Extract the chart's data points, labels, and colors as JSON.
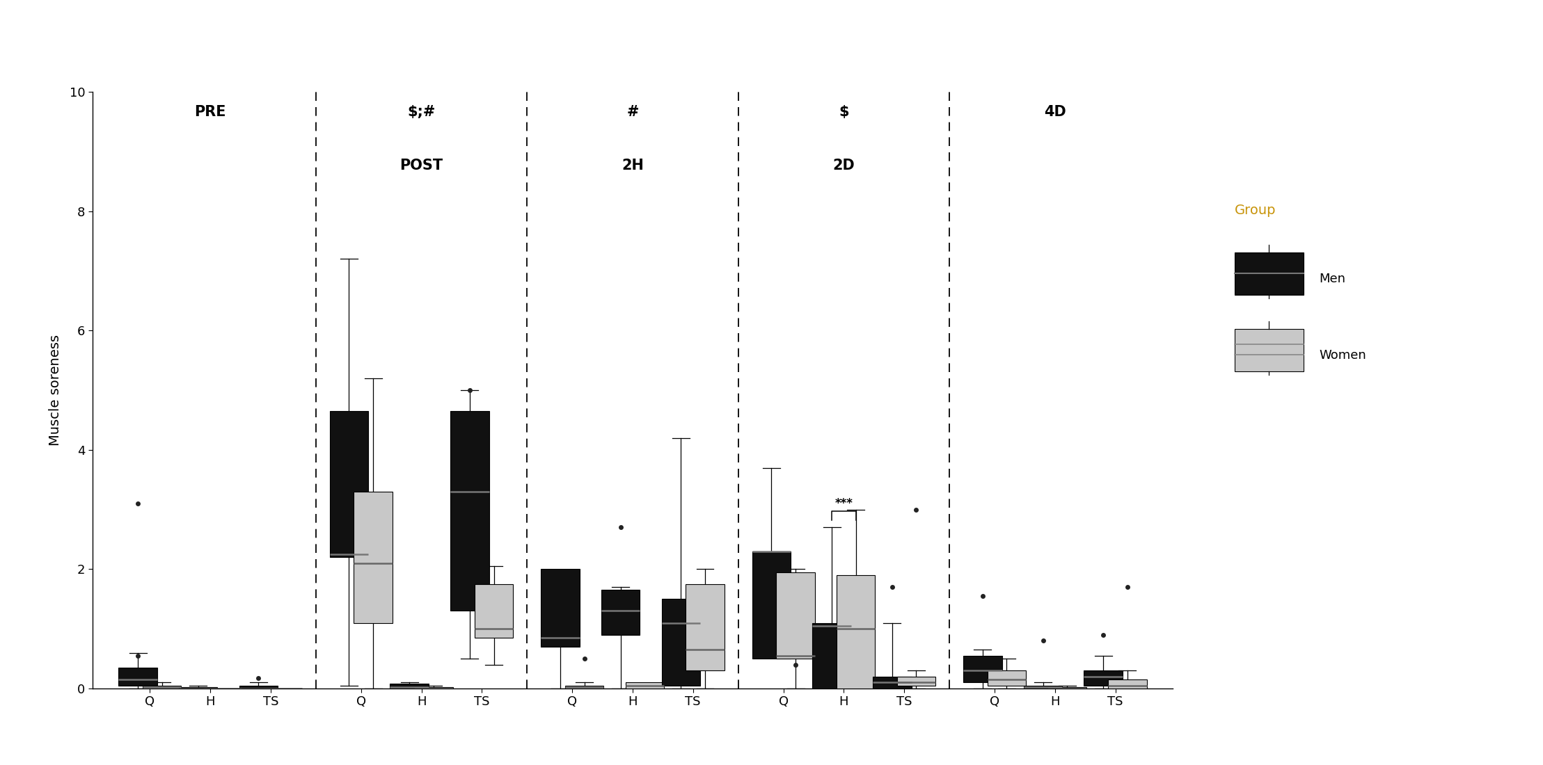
{
  "timepoints": [
    "PRE",
    "POST",
    "2H",
    "2D",
    "4D"
  ],
  "muscles": [
    "Q",
    "H",
    "TS"
  ],
  "section_label_lines1": [
    "PRE",
    "$;#",
    "#",
    "$",
    "4D"
  ],
  "section_label_lines2": [
    "",
    "POST",
    "2H",
    "2D",
    ""
  ],
  "ylabel": "Muscle soreness",
  "ylim": [
    0,
    10
  ],
  "yticks": [
    0,
    2,
    4,
    6,
    8,
    10
  ],
  "men_color": "#111111",
  "women_color": "#c8c8c8",
  "legend_title": "Group",
  "legend_title_color": "#d4a017",
  "boxes": {
    "PRE_Q_men": {
      "q1": 0.05,
      "median": 0.15,
      "q3": 0.35,
      "whislo": 0.0,
      "whishi": 0.6,
      "fliers": [
        0.55,
        3.1
      ]
    },
    "PRE_Q_women": {
      "q1": 0.0,
      "median": 0.02,
      "q3": 0.05,
      "whislo": 0.0,
      "whishi": 0.1,
      "fliers": []
    },
    "PRE_H_men": {
      "q1": 0.0,
      "median": 0.0,
      "q3": 0.02,
      "whislo": 0.0,
      "whishi": 0.05,
      "fliers": []
    },
    "PRE_H_women": {
      "q1": 0.0,
      "median": 0.0,
      "q3": 0.0,
      "whislo": 0.0,
      "whishi": 0.0,
      "fliers": []
    },
    "PRE_TS_men": {
      "q1": 0.0,
      "median": 0.0,
      "q3": 0.05,
      "whislo": 0.0,
      "whishi": 0.1,
      "fliers": [
        0.18
      ]
    },
    "PRE_TS_women": {
      "q1": 0.0,
      "median": 0.0,
      "q3": 0.0,
      "whislo": 0.0,
      "whishi": 0.0,
      "fliers": []
    },
    "POST_Q_men": {
      "q1": 2.2,
      "median": 2.25,
      "q3": 4.65,
      "whislo": 0.05,
      "whishi": 7.2,
      "fliers": []
    },
    "POST_Q_women": {
      "q1": 1.1,
      "median": 2.1,
      "q3": 3.3,
      "whislo": 0.0,
      "whishi": 5.2,
      "fliers": []
    },
    "POST_H_men": {
      "q1": 0.0,
      "median": 0.02,
      "q3": 0.08,
      "whislo": 0.0,
      "whishi": 0.1,
      "fliers": []
    },
    "POST_H_women": {
      "q1": 0.0,
      "median": 0.0,
      "q3": 0.02,
      "whislo": 0.0,
      "whishi": 0.05,
      "fliers": []
    },
    "POST_TS_men": {
      "q1": 1.3,
      "median": 3.3,
      "q3": 4.65,
      "whislo": 0.5,
      "whishi": 5.0,
      "fliers": [
        5.0
      ]
    },
    "POST_TS_women": {
      "q1": 0.85,
      "median": 1.0,
      "q3": 1.75,
      "whislo": 0.4,
      "whishi": 2.05,
      "fliers": []
    },
    "2H_Q_men": {
      "q1": 0.7,
      "median": 0.85,
      "q3": 2.0,
      "whislo": 0.0,
      "whishi": 2.0,
      "fliers": []
    },
    "2H_Q_women": {
      "q1": 0.0,
      "median": 0.02,
      "q3": 0.05,
      "whislo": 0.0,
      "whishi": 0.1,
      "fliers": [
        0.5
      ]
    },
    "2H_H_men": {
      "q1": 0.9,
      "median": 1.3,
      "q3": 1.65,
      "whislo": 0.0,
      "whishi": 1.7,
      "fliers": [
        2.7
      ]
    },
    "2H_H_women": {
      "q1": 0.0,
      "median": 0.05,
      "q3": 0.1,
      "whislo": 0.0,
      "whishi": 0.1,
      "fliers": []
    },
    "2H_TS_men": {
      "q1": 0.05,
      "median": 1.1,
      "q3": 1.5,
      "whislo": 0.0,
      "whishi": 4.2,
      "fliers": []
    },
    "2H_TS_women": {
      "q1": 0.3,
      "median": 0.65,
      "q3": 1.75,
      "whislo": 0.0,
      "whishi": 2.0,
      "fliers": []
    },
    "2D_Q_men": {
      "q1": 0.5,
      "median": 2.3,
      "q3": 2.3,
      "whislo": 0.5,
      "whishi": 3.7,
      "fliers": []
    },
    "2D_Q_women": {
      "q1": 0.5,
      "median": 0.55,
      "q3": 1.95,
      "whislo": 0.0,
      "whishi": 2.0,
      "fliers": [
        0.4
      ]
    },
    "2D_H_men": {
      "q1": 0.0,
      "median": 1.05,
      "q3": 1.1,
      "whislo": 0.0,
      "whishi": 2.7,
      "fliers": []
    },
    "2D_H_women": {
      "q1": 0.0,
      "median": 1.0,
      "q3": 1.9,
      "whislo": 0.0,
      "whishi": 3.0,
      "fliers": []
    },
    "2D_TS_men": {
      "q1": 0.0,
      "median": 0.1,
      "q3": 0.2,
      "whislo": 0.0,
      "whishi": 1.1,
      "fliers": [
        1.7
      ]
    },
    "2D_TS_women": {
      "q1": 0.05,
      "median": 0.1,
      "q3": 0.2,
      "whislo": 0.0,
      "whishi": 0.3,
      "fliers": [
        3.0
      ]
    },
    "4D_Q_men": {
      "q1": 0.1,
      "median": 0.3,
      "q3": 0.55,
      "whislo": 0.0,
      "whishi": 0.65,
      "fliers": [
        1.55
      ]
    },
    "4D_Q_women": {
      "q1": 0.05,
      "median": 0.15,
      "q3": 0.3,
      "whislo": 0.0,
      "whishi": 0.5,
      "fliers": []
    },
    "4D_H_men": {
      "q1": 0.0,
      "median": 0.02,
      "q3": 0.05,
      "whislo": 0.0,
      "whishi": 0.1,
      "fliers": [
        0.8
      ]
    },
    "4D_H_women": {
      "q1": 0.0,
      "median": 0.0,
      "q3": 0.02,
      "whislo": 0.0,
      "whishi": 0.05,
      "fliers": []
    },
    "4D_TS_men": {
      "q1": 0.05,
      "median": 0.2,
      "q3": 0.3,
      "whislo": 0.0,
      "whishi": 0.55,
      "fliers": [
        0.9
      ]
    },
    "4D_TS_women": {
      "q1": 0.0,
      "median": 0.05,
      "q3": 0.15,
      "whislo": 0.0,
      "whishi": 0.3,
      "fliers": [
        1.7
      ]
    }
  }
}
